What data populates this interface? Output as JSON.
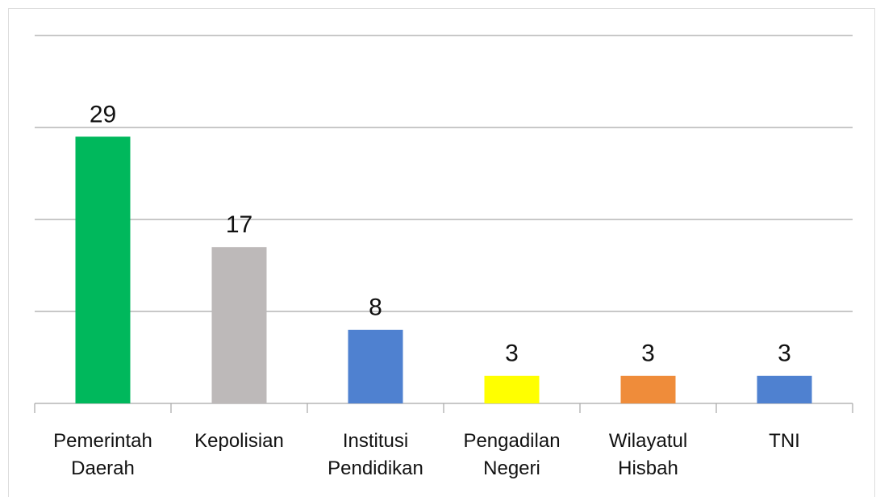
{
  "chart_data": {
    "type": "bar",
    "categories": [
      "Pemerintah Daerah",
      "Kepolisian",
      "Institusi Pendidikan",
      "Pengadilan Negeri",
      "Wilayatul Hisbah",
      "TNI"
    ],
    "values": [
      29,
      17,
      8,
      3,
      3,
      3
    ],
    "colors": [
      "#00b85c",
      "#bdb9b9",
      "#4f81d0",
      "#ffff00",
      "#ef8c3a",
      "#4f81d0"
    ],
    "ylim": [
      0,
      40
    ],
    "yticks": [
      0,
      10,
      20,
      30,
      40
    ],
    "grid": true
  }
}
